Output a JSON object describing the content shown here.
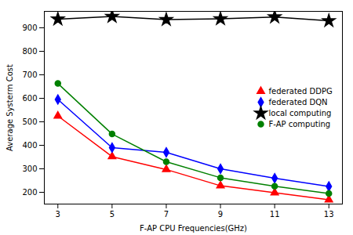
{
  "chart_data": {
    "type": "line",
    "x": [
      3,
      5,
      7,
      9,
      11,
      13
    ],
    "series": [
      {
        "name": "federated DDPG",
        "color": "#ff0000",
        "marker": "triangle",
        "values": [
          525,
          352,
          297,
          228,
          198,
          168
        ]
      },
      {
        "name": "federated DQN",
        "color": "#0000ff",
        "marker": "diamond",
        "values": [
          595,
          390,
          370,
          300,
          260,
          225
        ]
      },
      {
        "name": "local computing",
        "color": "#000000",
        "marker": "star",
        "values": [
          937,
          948,
          935,
          938,
          946,
          930
        ]
      },
      {
        "name": "F-AP computing",
        "color": "#008000",
        "marker": "circle",
        "values": [
          663,
          448,
          330,
          262,
          226,
          195
        ]
      }
    ],
    "xlabel": "F-AP CPU Frequencies(GHz)",
    "ylabel": "Average Systerm Cost",
    "xlim": [
      2.5,
      13.5
    ],
    "ylim": [
      150,
      970
    ],
    "xticks": [
      3,
      5,
      7,
      9,
      11,
      13
    ],
    "yticks": [
      200,
      300,
      400,
      500,
      600,
      700,
      800,
      900
    ],
    "grid": false,
    "legend": "center right"
  }
}
